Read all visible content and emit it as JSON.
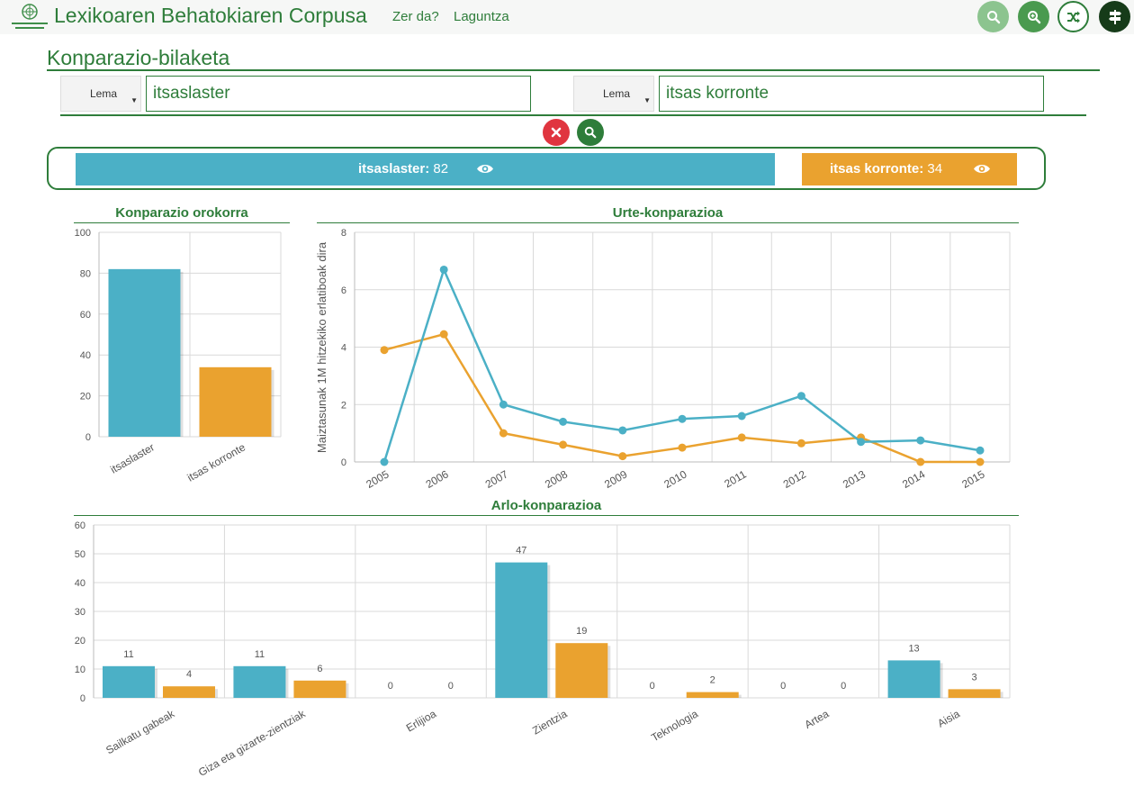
{
  "header": {
    "title": "Lexikoaren Behatokiaren Corpusa",
    "nav": [
      "Zer da?",
      "Laguntza"
    ],
    "buttons": [
      "search-icon",
      "zoom-in-icon",
      "shuffle-icon",
      "signpost-icon"
    ]
  },
  "page": {
    "title": "Konparazio-bilaketa"
  },
  "search": {
    "left": {
      "type_label": "Lema",
      "value": "itsaslaster"
    },
    "right": {
      "type_label": "Lema",
      "value": "itsas korronte"
    },
    "clear_icon": "close-icon",
    "search_icon": "search-icon"
  },
  "results": [
    {
      "term": "itsaslaster:",
      "count": "82",
      "color": "#4bb0c6",
      "icon": "eye-icon"
    },
    {
      "term": "itsas korronte:",
      "count": "34",
      "color": "#eaa22f",
      "icon": "eye-icon"
    }
  ],
  "colors": {
    "accent": "#2e7d3a",
    "series1": "#4bb0c6",
    "series2": "#eaa22f",
    "danger": "#e0353f"
  },
  "chart_data": [
    {
      "type": "bar",
      "title": "Konparazio orokorra",
      "categories": [
        "itsaslaster",
        "itsas korronte"
      ],
      "values": [
        82,
        34
      ],
      "ylim": [
        0,
        100
      ],
      "yticks": [
        0,
        20,
        40,
        60,
        80,
        100
      ],
      "grid": true
    },
    {
      "type": "line",
      "title": "Urte-konparazioa",
      "ylabel": "Maiztasunak 1M hitzekiko erlatiboak dira",
      "x": [
        "2005",
        "2006",
        "2007",
        "2008",
        "2009",
        "2010",
        "2011",
        "2012",
        "2013",
        "2014",
        "2015"
      ],
      "series": [
        {
          "values": [
            0,
            6.7,
            2.0,
            1.4,
            1.1,
            1.5,
            1.6,
            2.3,
            0.7,
            0.75,
            0.4
          ]
        },
        {
          "values": [
            3.9,
            4.45,
            1.0,
            0.6,
            0.2,
            0.5,
            0.85,
            0.65,
            0.85,
            0,
            0
          ]
        }
      ],
      "ylim": [
        0,
        8
      ],
      "yticks": [
        0,
        2,
        4,
        6,
        8
      ],
      "grid": true
    },
    {
      "type": "bar",
      "title": "Arlo-konparazioa",
      "categories": [
        "Sailkatu gabeak",
        "Giza eta gizarte-zientziak",
        "Erlijioa",
        "Zientzia",
        "Teknologia",
        "Artea",
        "Aisia"
      ],
      "series": [
        {
          "values": [
            11,
            11,
            0,
            47,
            0,
            0,
            13
          ]
        },
        {
          "values": [
            4,
            6,
            0,
            19,
            2,
            0,
            3
          ]
        }
      ],
      "ylim": [
        0,
        60
      ],
      "yticks": [
        0,
        10,
        20,
        30,
        40,
        50,
        60
      ],
      "grid": true
    }
  ]
}
